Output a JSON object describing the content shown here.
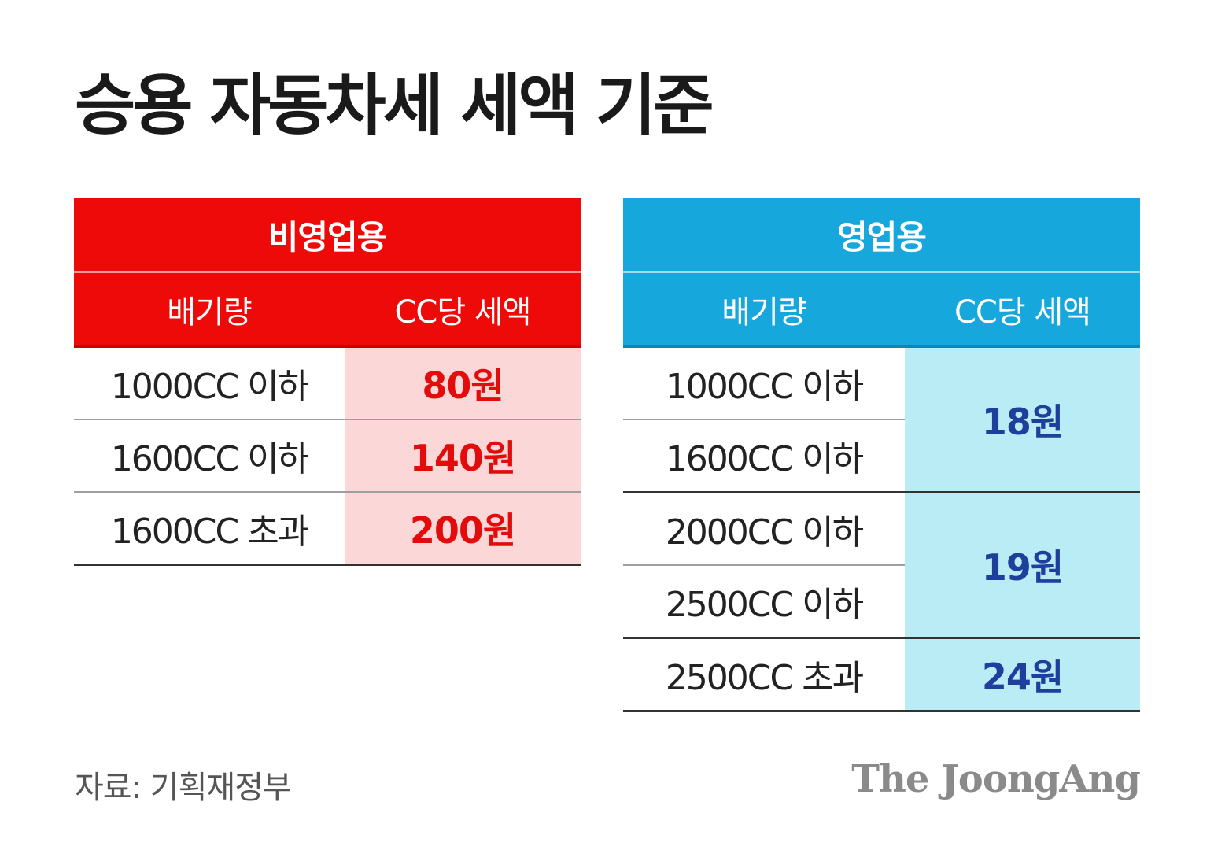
{
  "title": "승용 자동차세 세액 기준",
  "colors": {
    "non_business_accent": "#ef0a0a",
    "non_business_fill": "#fcd7d7",
    "business_accent": "#16a8dc",
    "business_fill": "#b9ecf4",
    "business_value_text": "#1e3f9c"
  },
  "non_business": {
    "header": "비영업용",
    "col_displacement": "배기량",
    "col_tax": "CC당 세액",
    "rows": [
      {
        "displacement": "1000CC 이하",
        "tax": "80원"
      },
      {
        "displacement": "1600CC 이하",
        "tax": "140원"
      },
      {
        "displacement": "1600CC 초과",
        "tax": "200원"
      }
    ]
  },
  "business": {
    "header": "영업용",
    "col_displacement": "배기량",
    "col_tax": "CC당 세액",
    "rows": [
      {
        "displacement": "1000CC 이하"
      },
      {
        "displacement": "1600CC 이하"
      },
      {
        "displacement": "2000CC 이하"
      },
      {
        "displacement": "2500CC 이하"
      },
      {
        "displacement": "2500CC 초과"
      }
    ],
    "rates": [
      {
        "tax": "18원"
      },
      {
        "tax": "19원"
      },
      {
        "tax": "24원"
      }
    ]
  },
  "source": "자료: 기획재정부",
  "brand": "The JoongAng"
}
